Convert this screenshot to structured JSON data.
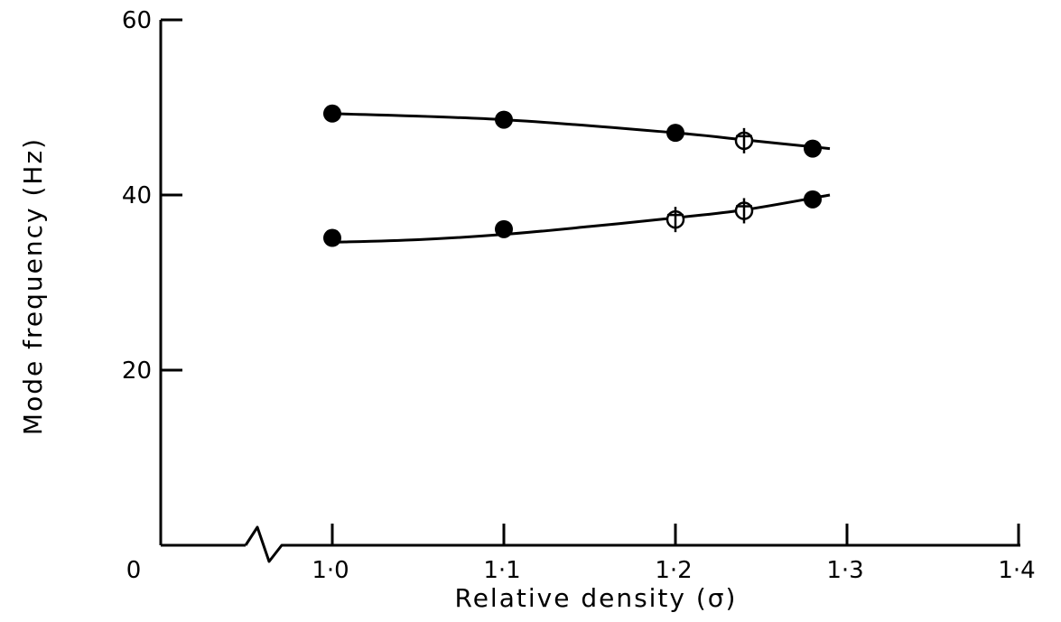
{
  "chart_data": {
    "type": "line",
    "title": "",
    "xlabel": "Relative density (σ)",
    "ylabel": "Mode frequency (Hz)",
    "xlim": [
      1.0,
      1.4
    ],
    "ylim": [
      0,
      60
    ],
    "x_axis_break": true,
    "grid": false,
    "x_ticks": [
      {
        "value": 1.0,
        "label": "1·0"
      },
      {
        "value": 1.1,
        "label": "1·1"
      },
      {
        "value": 1.2,
        "label": "1·2"
      },
      {
        "value": 1.3,
        "label": "1·3"
      },
      {
        "value": 1.4,
        "label": "1·4"
      }
    ],
    "x_origin_label": "0",
    "y_ticks": [
      {
        "value": 20,
        "label": "20"
      },
      {
        "value": 40,
        "label": "40"
      },
      {
        "value": 60,
        "label": "60"
      }
    ],
    "series": [
      {
        "markers": [
          {
            "x": 1.0,
            "y": 49.3,
            "symbol": "filled-circle"
          },
          {
            "x": 1.1,
            "y": 48.6,
            "symbol": "filled-circle"
          },
          {
            "x": 1.2,
            "y": 47.1,
            "symbol": "filled-circle"
          },
          {
            "x": 1.24,
            "y": 46.2,
            "symbol": "open-circle-cross"
          },
          {
            "x": 1.28,
            "y": 45.3,
            "symbol": "filled-circle"
          }
        ],
        "curve": [
          [
            1.0,
            49.3
          ],
          [
            1.1,
            48.6
          ],
          [
            1.2,
            47.1
          ],
          [
            1.24,
            46.3
          ],
          [
            1.29,
            45.3
          ]
        ]
      },
      {
        "markers": [
          {
            "x": 1.0,
            "y": 35.1,
            "symbol": "filled-circle"
          },
          {
            "x": 1.1,
            "y": 36.1,
            "symbol": "filled-circle"
          },
          {
            "x": 1.2,
            "y": 37.2,
            "symbol": "open-circle-cross"
          },
          {
            "x": 1.24,
            "y": 38.2,
            "symbol": "open-circle-cross"
          },
          {
            "x": 1.28,
            "y": 39.5,
            "symbol": "filled-circle"
          }
        ],
        "curve": [
          [
            1.0,
            34.6
          ],
          [
            1.05,
            34.9
          ],
          [
            1.1,
            35.5
          ],
          [
            1.15,
            36.4
          ],
          [
            1.2,
            37.4
          ],
          [
            1.24,
            38.3
          ],
          [
            1.29,
            40.0
          ]
        ]
      }
    ]
  }
}
